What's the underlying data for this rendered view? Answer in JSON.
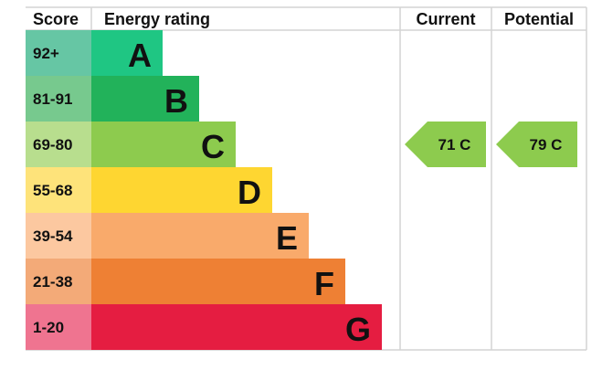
{
  "chart_data": {
    "type": "bar",
    "headers": {
      "score": "Score",
      "rating": "Energy rating",
      "current": "Current",
      "potential": "Potential"
    },
    "bands": [
      {
        "letter": "A",
        "range": "92+",
        "color": "#1fc683",
        "score_color": "#66c6a4"
      },
      {
        "letter": "B",
        "range": "81-91",
        "color": "#22b25a",
        "score_color": "#77c98e"
      },
      {
        "letter": "C",
        "range": "69-80",
        "color": "#8dcb4e",
        "score_color": "#b8de8e"
      },
      {
        "letter": "D",
        "range": "55-68",
        "color": "#fed631",
        "score_color": "#fee37a"
      },
      {
        "letter": "E",
        "range": "39-54",
        "color": "#f9aa6b",
        "score_color": "#fcc8a0"
      },
      {
        "letter": "F",
        "range": "21-38",
        "color": "#ee8034",
        "score_color": "#f3aa78"
      },
      {
        "letter": "G",
        "range": "1-20",
        "color": "#e51d41",
        "score_color": "#ef7490"
      }
    ],
    "current": {
      "value": 71,
      "band": "C",
      "label": "71  C",
      "color": "#8dcb4e"
    },
    "potential": {
      "value": 79,
      "band": "C",
      "label": "79  C",
      "color": "#8dcb4e"
    },
    "grid_color": "#d4d4d4"
  }
}
